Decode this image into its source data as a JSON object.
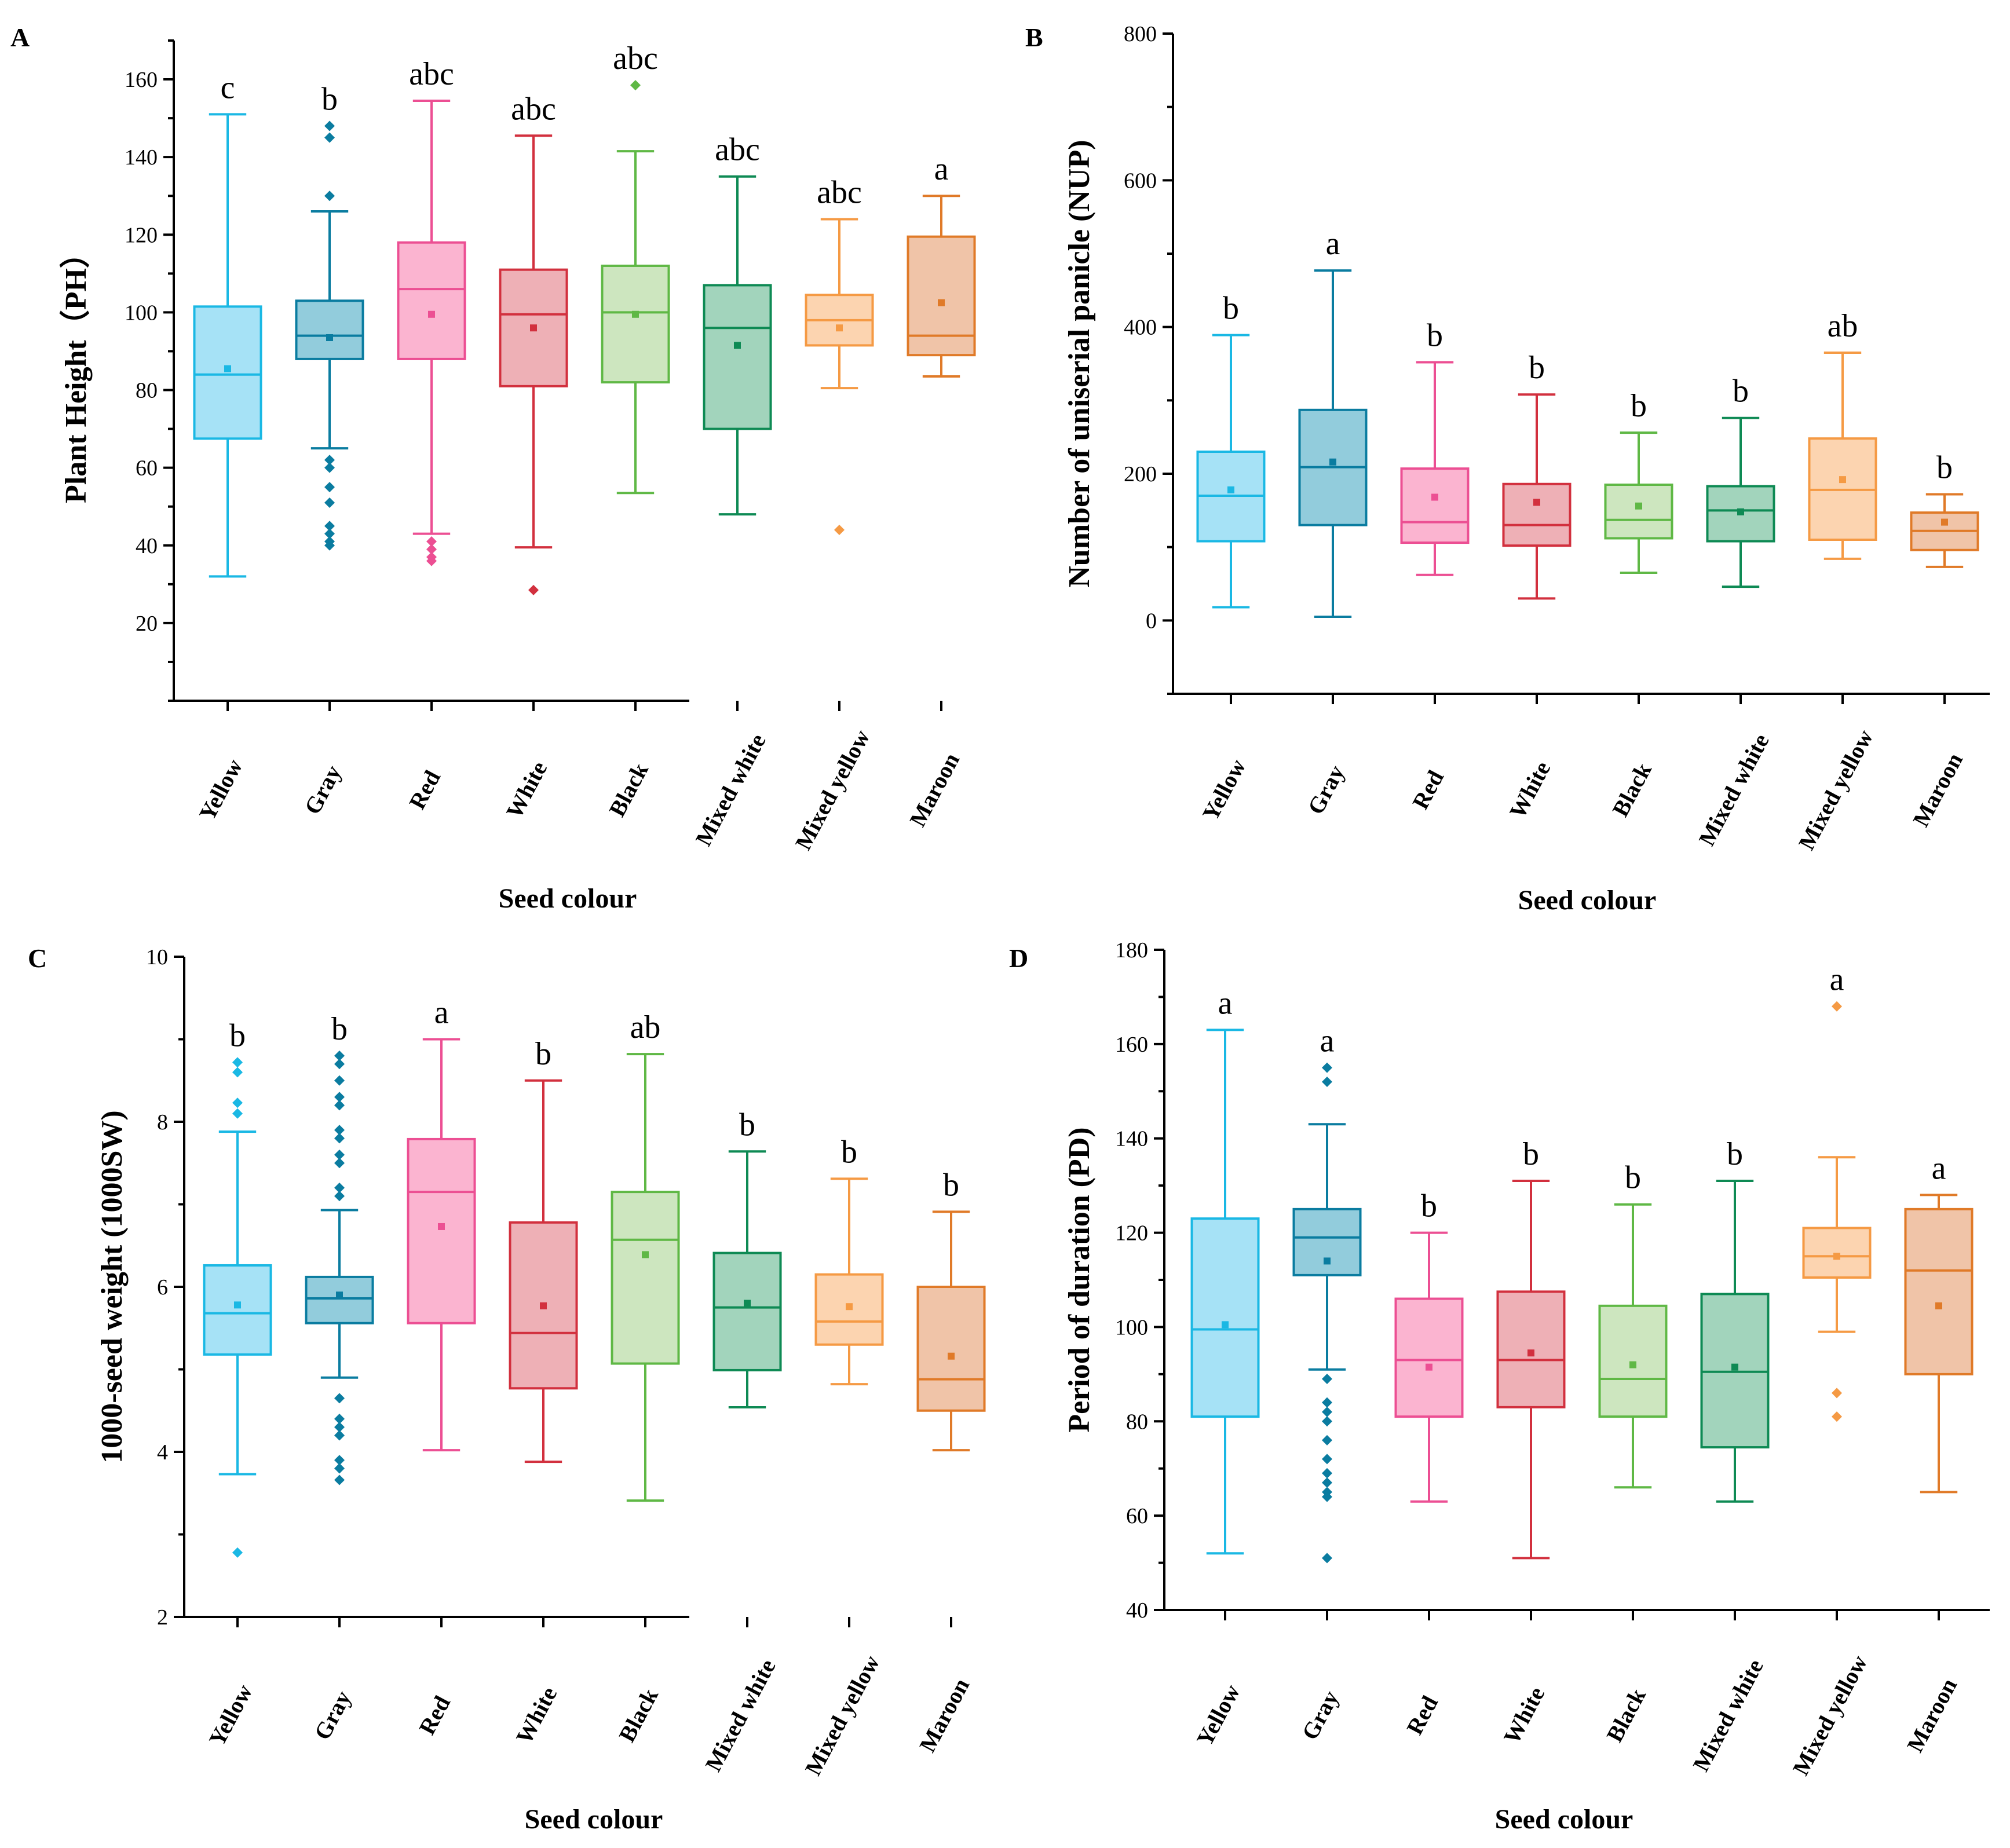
{
  "figure": {
    "categories": [
      "Yellow",
      "Gray",
      "Red",
      "White",
      "Black",
      "Mixed white",
      "Mixed yellow",
      "Maroon"
    ],
    "colors": [
      "#1ab8e4",
      "#0a7ca0",
      "#ec4f93",
      "#d2303e",
      "#5fb845",
      "#0e8a54",
      "#f59a44",
      "#e07a28"
    ],
    "fills": [
      "#a6e2f6",
      "#92ccdc",
      "#fbb4d0",
      "#eeb0b6",
      "#cde6bf",
      "#a2d4bc",
      "#fcd4b0",
      "#f0c4a8"
    ]
  },
  "chart_data": [
    {
      "type": "box",
      "panel": "A",
      "title": "",
      "xlabel": "Seed colour",
      "ylabel": "Plant Height（PH）",
      "ylim": [
        0,
        170
      ],
      "yticks": [
        20,
        40,
        60,
        80,
        100,
        120,
        140,
        160
      ],
      "ytick_labels": [
        "20",
        "40",
        "60",
        "80",
        "100",
        "120",
        "140",
        "160"
      ],
      "series": [
        {
          "name": "Yellow",
          "whisker_low": 32,
          "q1": 67.5,
          "median": 84,
          "q3": 101.5,
          "whisker_high": 151,
          "mean": 85.5,
          "outliers": [],
          "significance": "c"
        },
        {
          "name": "Gray",
          "whisker_low": 65,
          "q1": 88,
          "median": 94,
          "q3": 103,
          "whisker_high": 126,
          "mean": 93.5,
          "outliers": [
            148,
            145,
            130,
            62,
            60,
            55,
            51,
            45,
            43,
            41,
            40
          ],
          "significance": "b"
        },
        {
          "name": "Red",
          "whisker_low": 43,
          "q1": 88,
          "median": 106,
          "q3": 118,
          "whisker_high": 154.5,
          "mean": 99.5,
          "outliers": [
            41,
            39,
            37,
            36
          ],
          "significance": "abc"
        },
        {
          "name": "White",
          "whisker_low": 39.5,
          "q1": 81,
          "median": 99.5,
          "q3": 111,
          "whisker_high": 145.5,
          "mean": 96,
          "outliers": [
            28.5
          ],
          "significance": "abc"
        },
        {
          "name": "Black",
          "whisker_low": 53.5,
          "q1": 82,
          "median": 100,
          "q3": 112,
          "whisker_high": 141.5,
          "mean": 99.5,
          "outliers": [
            158.5
          ],
          "significance": "abc"
        },
        {
          "name": "Mixed white",
          "whisker_low": 48,
          "q1": 70,
          "median": 96,
          "q3": 107,
          "whisker_high": 135,
          "mean": 91.5,
          "outliers": [],
          "significance": "abc"
        },
        {
          "name": "Mixed yellow",
          "whisker_low": 80.5,
          "q1": 91.5,
          "median": 98,
          "q3": 104.5,
          "whisker_high": 124,
          "mean": 96,
          "outliers": [
            44
          ],
          "significance": "abc"
        },
        {
          "name": "Maroon",
          "whisker_low": 83.5,
          "q1": 89,
          "median": 94,
          "q3": 119.5,
          "whisker_high": 130,
          "mean": 102.5,
          "outliers": [],
          "significance": "a"
        }
      ]
    },
    {
      "type": "box",
      "panel": "B",
      "title": "",
      "xlabel": "Seed colour",
      "ylabel": "Number of uniserial panicle (NUP)",
      "ylim": [
        -100,
        800
      ],
      "yticks": [
        0,
        200,
        400,
        600,
        800
      ],
      "ytick_labels": [
        "0",
        "200",
        "400",
        "600",
        "800"
      ],
      "series": [
        {
          "name": "Yellow",
          "whisker_low": 18,
          "q1": 108,
          "median": 170,
          "q3": 230,
          "whisker_high": 389,
          "mean": 178,
          "outliers": [],
          "significance": "b"
        },
        {
          "name": "Gray",
          "whisker_low": 5,
          "q1": 130,
          "median": 209,
          "q3": 287,
          "whisker_high": 477,
          "mean": 216,
          "outliers": [],
          "significance": "a"
        },
        {
          "name": "Red",
          "whisker_low": 62,
          "q1": 106,
          "median": 134,
          "q3": 207,
          "whisker_high": 352,
          "mean": 168,
          "outliers": [],
          "significance": "b"
        },
        {
          "name": "White",
          "whisker_low": 30,
          "q1": 102,
          "median": 130,
          "q3": 186,
          "whisker_high": 308,
          "mean": 161,
          "outliers": [],
          "significance": "b"
        },
        {
          "name": "Black",
          "whisker_low": 65,
          "q1": 112,
          "median": 137,
          "q3": 185,
          "whisker_high": 256,
          "mean": 156,
          "outliers": [],
          "significance": "b"
        },
        {
          "name": "Mixed white",
          "whisker_low": 46,
          "q1": 108,
          "median": 150,
          "q3": 183,
          "whisker_high": 276,
          "mean": 148,
          "outliers": [],
          "significance": "b"
        },
        {
          "name": "Mixed yellow",
          "whisker_low": 84,
          "q1": 110,
          "median": 178,
          "q3": 248,
          "whisker_high": 365,
          "mean": 192,
          "outliers": [],
          "significance": "ab"
        },
        {
          "name": "Maroon",
          "whisker_low": 73,
          "q1": 96,
          "median": 122,
          "q3": 147,
          "whisker_high": 172,
          "mean": 134,
          "outliers": [],
          "significance": "b"
        }
      ]
    },
    {
      "type": "box",
      "panel": "C",
      "title": "",
      "xlabel": "Seed colour",
      "ylabel": "1000-seed weight (1000SW)",
      "ylim": [
        2,
        10
      ],
      "yticks": [
        2,
        4,
        6,
        8,
        10
      ],
      "ytick_labels": [
        "2",
        "4",
        "6",
        "8",
        "10"
      ],
      "series": [
        {
          "name": "Yellow",
          "whisker_low": 3.73,
          "q1": 5.18,
          "median": 5.68,
          "q3": 6.26,
          "whisker_high": 7.88,
          "mean": 5.78,
          "outliers": [
            8.72,
            8.6,
            8.23,
            8.1,
            2.78
          ],
          "significance": "b"
        },
        {
          "name": "Gray",
          "whisker_low": 4.9,
          "q1": 5.56,
          "median": 5.86,
          "q3": 6.12,
          "whisker_high": 6.93,
          "mean": 5.9,
          "outliers": [
            8.8,
            8.7,
            8.5,
            8.3,
            8.2,
            7.9,
            7.8,
            7.6,
            7.5,
            7.2,
            7.1,
            4.65,
            4.4,
            4.3,
            4.2,
            3.9,
            3.8,
            3.66
          ],
          "significance": "b"
        },
        {
          "name": "Red",
          "whisker_low": 4.02,
          "q1": 5.56,
          "median": 7.15,
          "q3": 7.79,
          "whisker_high": 9.0,
          "mean": 6.73,
          "outliers": [],
          "significance": "a"
        },
        {
          "name": "White",
          "whisker_low": 3.88,
          "q1": 4.77,
          "median": 5.44,
          "q3": 6.78,
          "whisker_high": 8.5,
          "mean": 5.77,
          "outliers": [],
          "significance": "b"
        },
        {
          "name": "Black",
          "whisker_low": 3.41,
          "q1": 5.07,
          "median": 6.57,
          "q3": 7.15,
          "whisker_high": 8.82,
          "mean": 6.39,
          "outliers": [],
          "significance": "ab"
        },
        {
          "name": "Mixed white",
          "whisker_low": 4.54,
          "q1": 4.99,
          "median": 5.75,
          "q3": 6.41,
          "whisker_high": 7.64,
          "mean": 5.8,
          "outliers": [],
          "significance": "b"
        },
        {
          "name": "Mixed yellow",
          "whisker_low": 4.82,
          "q1": 5.3,
          "median": 5.58,
          "q3": 6.15,
          "whisker_high": 7.31,
          "mean": 5.76,
          "outliers": [],
          "significance": "b"
        },
        {
          "name": "Maroon",
          "whisker_low": 4.02,
          "q1": 4.5,
          "median": 4.88,
          "q3": 6.0,
          "whisker_high": 6.91,
          "mean": 5.16,
          "outliers": [],
          "significance": "b"
        }
      ]
    },
    {
      "type": "box",
      "panel": "D",
      "title": "",
      "xlabel": "Seed colour",
      "ylabel": "Period of duration (PD)",
      "ylim": [
        40,
        180
      ],
      "yticks": [
        40,
        60,
        80,
        100,
        120,
        140,
        160,
        180
      ],
      "ytick_labels": [
        "40",
        "60",
        "80",
        "100",
        "120",
        "140",
        "160",
        "180"
      ],
      "series": [
        {
          "name": "Yellow",
          "whisker_low": 52,
          "q1": 81,
          "median": 99.5,
          "q3": 123,
          "whisker_high": 163,
          "mean": 100.5,
          "outliers": [],
          "significance": "a"
        },
        {
          "name": "Gray",
          "whisker_low": 91,
          "q1": 111,
          "median": 119,
          "q3": 125,
          "whisker_high": 143,
          "mean": 114,
          "outliers": [
            155,
            152,
            89,
            84,
            82,
            80,
            76,
            72,
            69,
            67,
            65,
            64,
            51
          ],
          "significance": "a"
        },
        {
          "name": "Red",
          "whisker_low": 63,
          "q1": 81,
          "median": 93,
          "q3": 106,
          "whisker_high": 120,
          "mean": 91.5,
          "outliers": [],
          "significance": "b"
        },
        {
          "name": "White",
          "whisker_low": 51,
          "q1": 83,
          "median": 93,
          "q3": 107.5,
          "whisker_high": 131,
          "mean": 94.5,
          "outliers": [],
          "significance": "b"
        },
        {
          "name": "Black",
          "whisker_low": 66,
          "q1": 81,
          "median": 89,
          "q3": 104.5,
          "whisker_high": 126,
          "mean": 92,
          "outliers": [],
          "significance": "b"
        },
        {
          "name": "Mixed white",
          "whisker_low": 63,
          "q1": 74.5,
          "median": 90.5,
          "q3": 107,
          "whisker_high": 131,
          "mean": 91.5,
          "outliers": [],
          "significance": "b"
        },
        {
          "name": "Mixed yellow",
          "whisker_low": 99,
          "q1": 110.5,
          "median": 115,
          "q3": 121,
          "whisker_high": 136,
          "mean": 115,
          "outliers": [
            168,
            86,
            81
          ],
          "significance": "a"
        },
        {
          "name": "Maroon",
          "whisker_low": 65,
          "q1": 90,
          "median": 112,
          "q3": 125,
          "whisker_high": 128,
          "mean": 104.5,
          "outliers": [],
          "significance": "a"
        }
      ]
    }
  ]
}
